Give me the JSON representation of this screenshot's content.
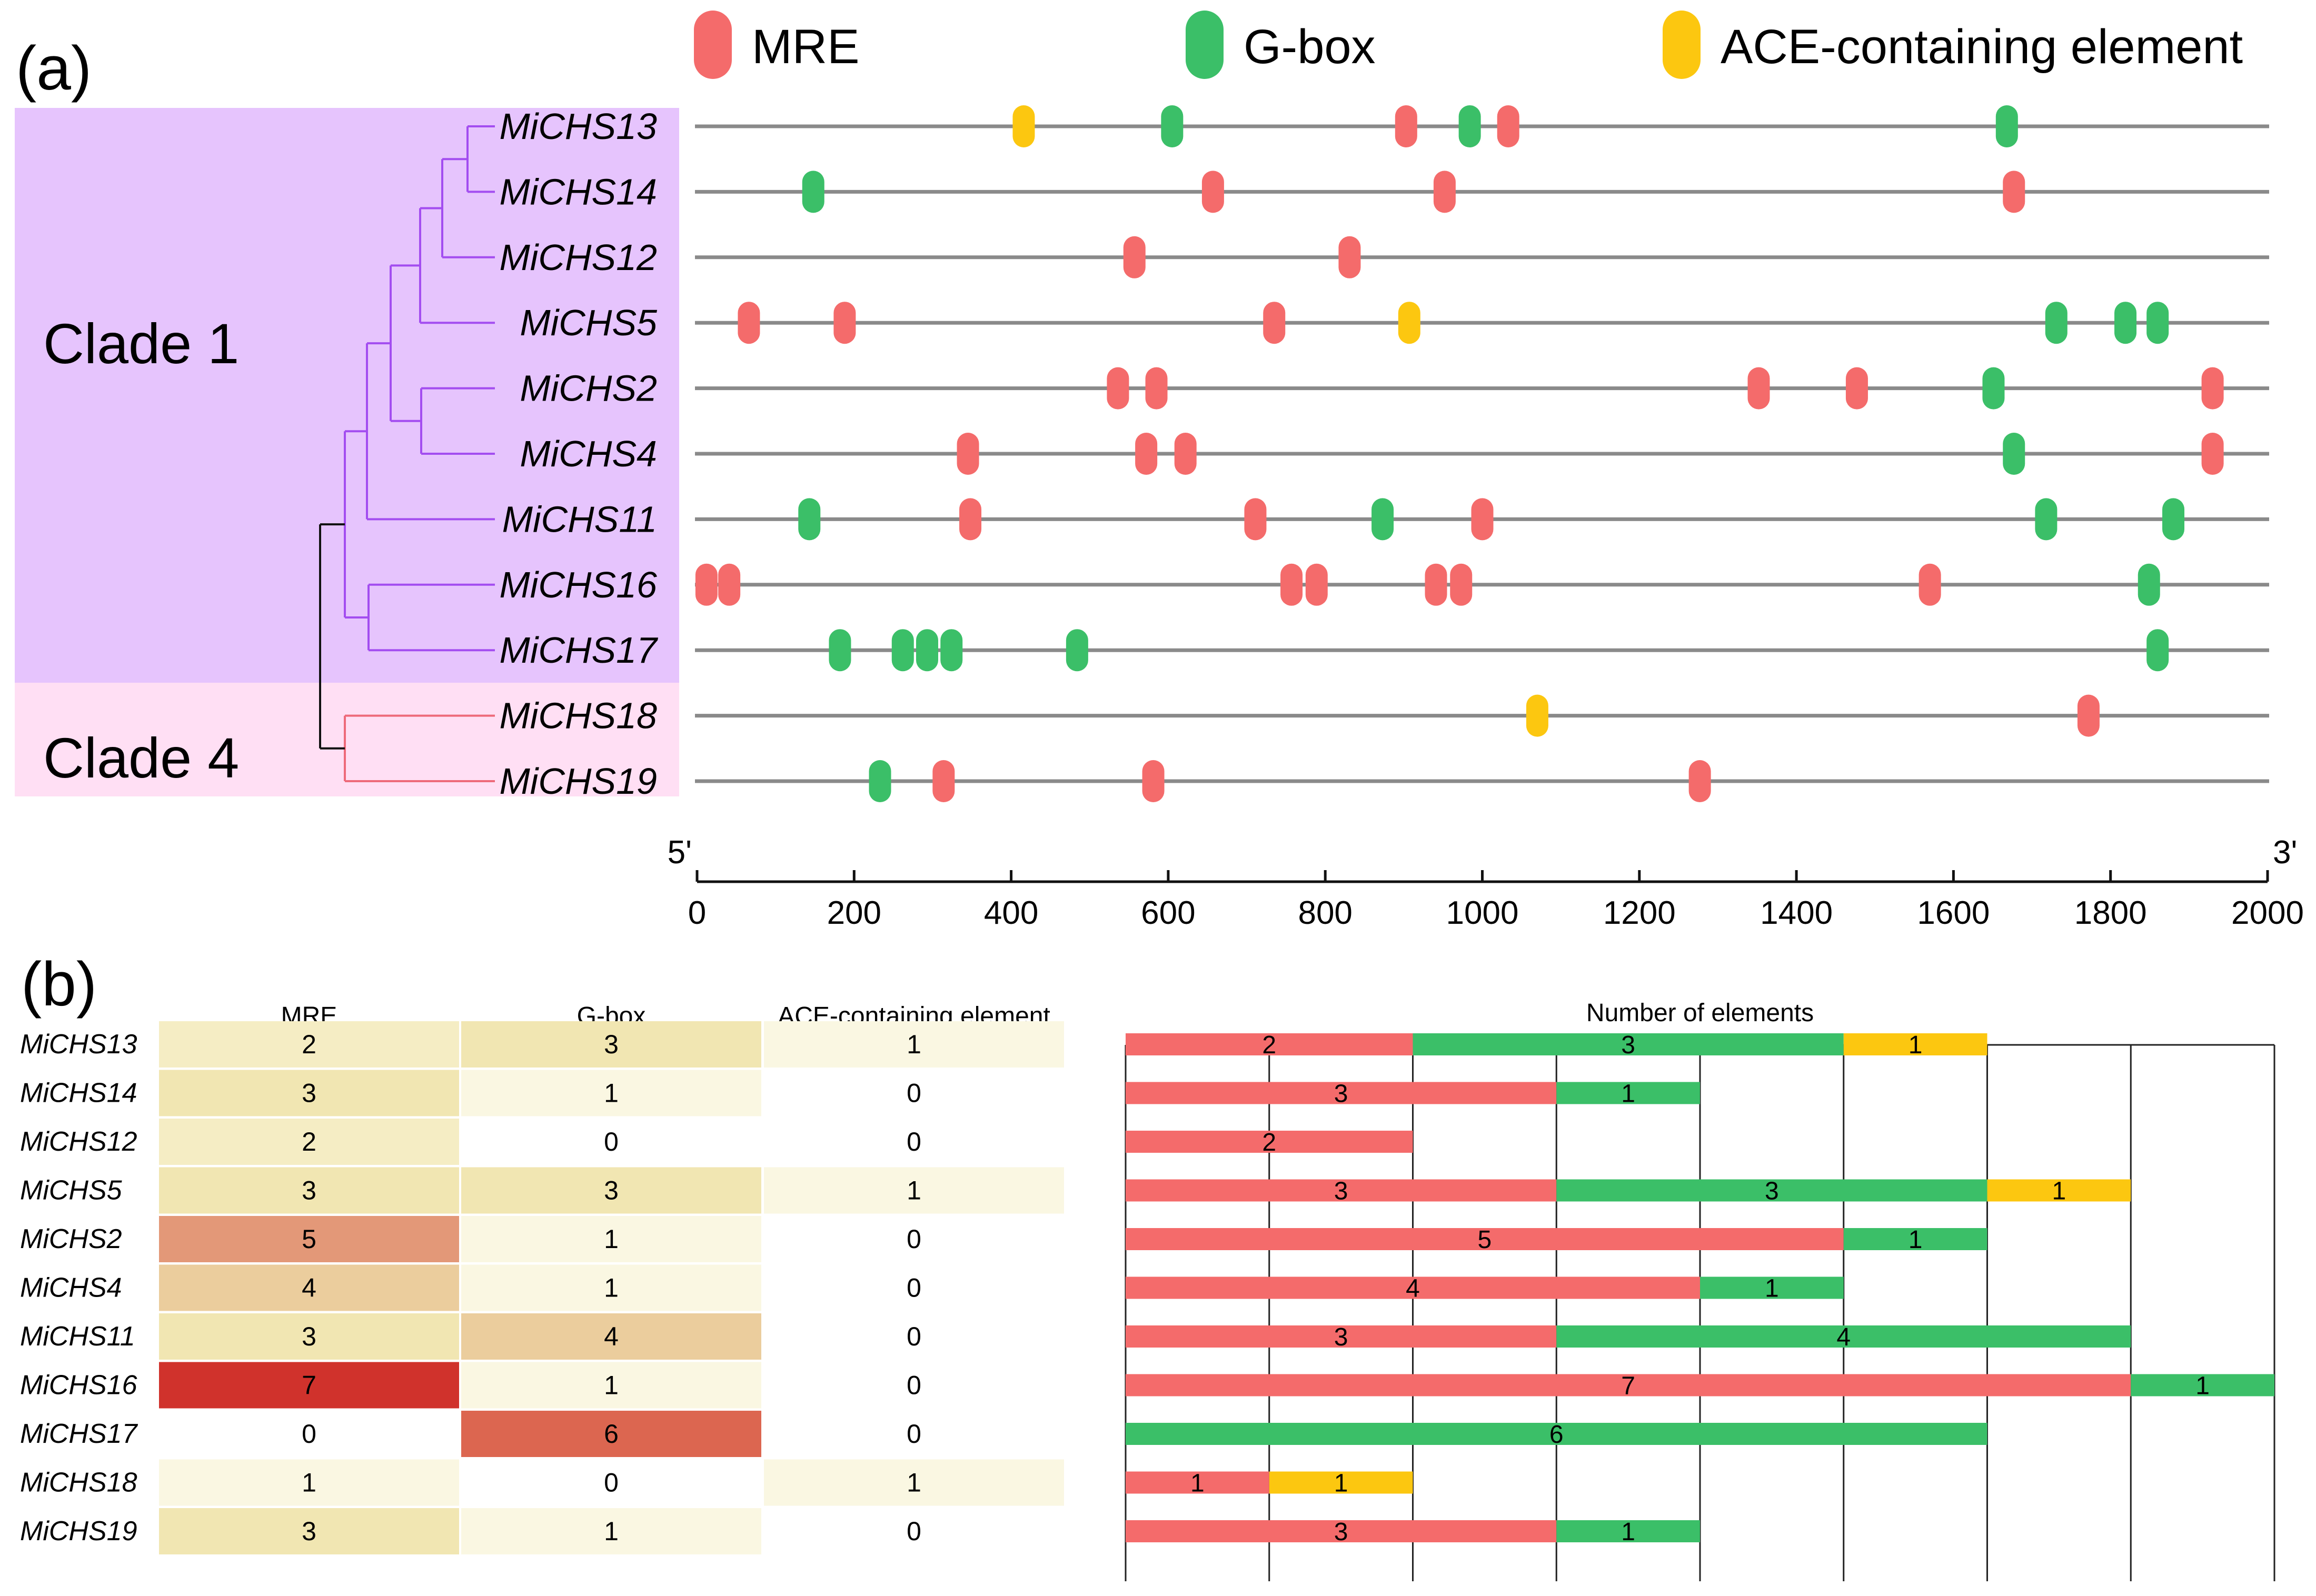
{
  "panel_a_label": "(a)",
  "panel_b_label": "(b)",
  "colors": {
    "MRE": "#f46b6b",
    "G-box": "#3bbf68",
    "ACE-containing element": "#fcc710",
    "line": "#8a8a8a",
    "clade1_bg": "#e6c4fd",
    "clade4_bg": "#ffdff4",
    "clade1_branch": "#a34df0",
    "clade4_branch": "#ee6a7a"
  },
  "legend": [
    {
      "name": "MRE",
      "label": "MRE",
      "color": "#f46b6b"
    },
    {
      "name": "G-box",
      "label": "G-box",
      "color": "#3bbf68"
    },
    {
      "name": "ACE-containing element",
      "label": "ACE-containing element",
      "color": "#fcc710"
    }
  ],
  "clades": [
    {
      "label": "Clade 1",
      "color": "#e6c4fd"
    },
    {
      "label": "Clade 4",
      "color": "#ffdff4"
    }
  ],
  "axis": {
    "start_label": "5'",
    "end_label": "3'",
    "min": 0,
    "max": 2000,
    "ticks": [
      0,
      200,
      400,
      600,
      800,
      1000,
      1200,
      1400,
      1600,
      1800,
      2000
    ]
  },
  "genes": [
    {
      "name": "MiCHS13",
      "clade": 1,
      "elements": [
        {
          "type": "ACE-containing element",
          "pos": 416
        },
        {
          "type": "G-box",
          "pos": 605
        },
        {
          "type": "MRE",
          "pos": 903
        },
        {
          "type": "G-box",
          "pos": 984
        },
        {
          "type": "MRE",
          "pos": 1033
        },
        {
          "type": "G-box",
          "pos": 1668
        }
      ]
    },
    {
      "name": "MiCHS14",
      "clade": 1,
      "elements": [
        {
          "type": "G-box",
          "pos": 148
        },
        {
          "type": "MRE",
          "pos": 657
        },
        {
          "type": "MRE",
          "pos": 952
        },
        {
          "type": "MRE",
          "pos": 1677
        }
      ]
    },
    {
      "name": "MiCHS12",
      "clade": 1,
      "elements": [
        {
          "type": "MRE",
          "pos": 557
        },
        {
          "type": "MRE",
          "pos": 831
        }
      ]
    },
    {
      "name": "MiCHS5",
      "clade": 1,
      "elements": [
        {
          "type": "MRE",
          "pos": 66
        },
        {
          "type": "MRE",
          "pos": 188
        },
        {
          "type": "MRE",
          "pos": 735
        },
        {
          "type": "ACE-containing element",
          "pos": 907
        },
        {
          "type": "G-box",
          "pos": 1731
        },
        {
          "type": "G-box",
          "pos": 1819
        },
        {
          "type": "G-box",
          "pos": 1860
        }
      ]
    },
    {
      "name": "MiCHS2",
      "clade": 1,
      "elements": [
        {
          "type": "MRE",
          "pos": 536
        },
        {
          "type": "MRE",
          "pos": 585
        },
        {
          "type": "MRE",
          "pos": 1352
        },
        {
          "type": "MRE",
          "pos": 1477
        },
        {
          "type": "G-box",
          "pos": 1651
        },
        {
          "type": "MRE",
          "pos": 1930
        }
      ]
    },
    {
      "name": "MiCHS4",
      "clade": 1,
      "elements": [
        {
          "type": "MRE",
          "pos": 345
        },
        {
          "type": "MRE",
          "pos": 572
        },
        {
          "type": "MRE",
          "pos": 622
        },
        {
          "type": "G-box",
          "pos": 1677
        },
        {
          "type": "MRE",
          "pos": 1930
        }
      ]
    },
    {
      "name": "MiCHS11",
      "clade": 1,
      "elements": [
        {
          "type": "G-box",
          "pos": 143
        },
        {
          "type": "MRE",
          "pos": 348
        },
        {
          "type": "MRE",
          "pos": 711
        },
        {
          "type": "G-box",
          "pos": 873
        },
        {
          "type": "MRE",
          "pos": 1000
        },
        {
          "type": "G-box",
          "pos": 1718
        },
        {
          "type": "G-box",
          "pos": 1880
        }
      ]
    },
    {
      "name": "MiCHS16",
      "clade": 1,
      "elements": [
        {
          "type": "MRE",
          "pos": 12
        },
        {
          "type": "MRE",
          "pos": 41
        },
        {
          "type": "MRE",
          "pos": 757
        },
        {
          "type": "MRE",
          "pos": 789
        },
        {
          "type": "MRE",
          "pos": 941
        },
        {
          "type": "MRE",
          "pos": 973
        },
        {
          "type": "MRE",
          "pos": 1570
        },
        {
          "type": "G-box",
          "pos": 1849
        }
      ]
    },
    {
      "name": "MiCHS17",
      "clade": 1,
      "elements": [
        {
          "type": "G-box",
          "pos": 182
        },
        {
          "type": "G-box",
          "pos": 262
        },
        {
          "type": "G-box",
          "pos": 293
        },
        {
          "type": "G-box",
          "pos": 324
        },
        {
          "type": "G-box",
          "pos": 484
        },
        {
          "type": "G-box",
          "pos": 1860
        }
      ]
    },
    {
      "name": "MiCHS18",
      "clade": 4,
      "elements": [
        {
          "type": "ACE-containing element",
          "pos": 1070
        },
        {
          "type": "MRE",
          "pos": 1772
        }
      ]
    },
    {
      "name": "MiCHS19",
      "clade": 4,
      "elements": [
        {
          "type": "G-box",
          "pos": 233
        },
        {
          "type": "MRE",
          "pos": 314
        },
        {
          "type": "MRE",
          "pos": 581
        },
        {
          "type": "MRE",
          "pos": 1277
        }
      ]
    }
  ],
  "heatmap": {
    "columns": [
      "MRE",
      "G-box",
      "ACE-containing element"
    ],
    "rows": [
      {
        "gene": "MiCHS13",
        "values": [
          2,
          3,
          1
        ],
        "colors": [
          "#f5edc4",
          "#f1e6b2",
          "#faf7e2"
        ]
      },
      {
        "gene": "MiCHS14",
        "values": [
          3,
          1,
          0
        ],
        "colors": [
          "#f1e6b2",
          "#faf7e2",
          "#ffffff"
        ]
      },
      {
        "gene": "MiCHS12",
        "values": [
          2,
          0,
          0
        ],
        "colors": [
          "#f5edc4",
          "#ffffff",
          "#ffffff"
        ]
      },
      {
        "gene": "MiCHS5",
        "values": [
          3,
          3,
          1
        ],
        "colors": [
          "#f1e6b2",
          "#f1e6b2",
          "#faf7e2"
        ]
      },
      {
        "gene": "MiCHS2",
        "values": [
          5,
          1,
          0
        ],
        "colors": [
          "#e39878",
          "#faf7e2",
          "#ffffff"
        ]
      },
      {
        "gene": "MiCHS4",
        "values": [
          4,
          1,
          0
        ],
        "colors": [
          "#ebcd9d",
          "#faf7e2",
          "#ffffff"
        ]
      },
      {
        "gene": "MiCHS11",
        "values": [
          3,
          4,
          0
        ],
        "colors": [
          "#f1e6b2",
          "#ebcd9d",
          "#ffffff"
        ]
      },
      {
        "gene": "MiCHS16",
        "values": [
          7,
          1,
          0
        ],
        "colors": [
          "#d0322c",
          "#faf7e2",
          "#ffffff"
        ]
      },
      {
        "gene": "MiCHS17",
        "values": [
          0,
          6,
          0
        ],
        "colors": [
          "#ffffff",
          "#dc6650",
          "#ffffff"
        ]
      },
      {
        "gene": "MiCHS18",
        "values": [
          1,
          0,
          1
        ],
        "colors": [
          "#faf7e2",
          "#ffffff",
          "#faf7e2"
        ]
      },
      {
        "gene": "MiCHS19",
        "values": [
          3,
          1,
          0
        ],
        "colors": [
          "#f1e6b2",
          "#faf7e2",
          "#ffffff"
        ]
      }
    ]
  },
  "chart_data": {
    "type": "bar",
    "stacked": true,
    "orientation": "horizontal",
    "title": "Number of elements",
    "categories": [
      "MiCHS13",
      "MiCHS14",
      "MiCHS12",
      "MiCHS5",
      "MiCHS2",
      "MiCHS4",
      "MiCHS11",
      "MiCHS16",
      "MiCHS17",
      "MiCHS18",
      "MiCHS19"
    ],
    "series": [
      {
        "name": "MRE",
        "color": "#f46b6b",
        "values": [
          2,
          3,
          2,
          3,
          5,
          4,
          3,
          7,
          0,
          1,
          3
        ]
      },
      {
        "name": "G-box",
        "color": "#3bbf68",
        "values": [
          3,
          1,
          0,
          3,
          1,
          1,
          4,
          1,
          6,
          0,
          1
        ]
      },
      {
        "name": "ACE-containing element",
        "color": "#fcc710",
        "values": [
          1,
          0,
          0,
          1,
          0,
          0,
          0,
          0,
          0,
          1,
          0
        ]
      }
    ],
    "xlim": [
      0,
      8
    ],
    "grid": true
  }
}
